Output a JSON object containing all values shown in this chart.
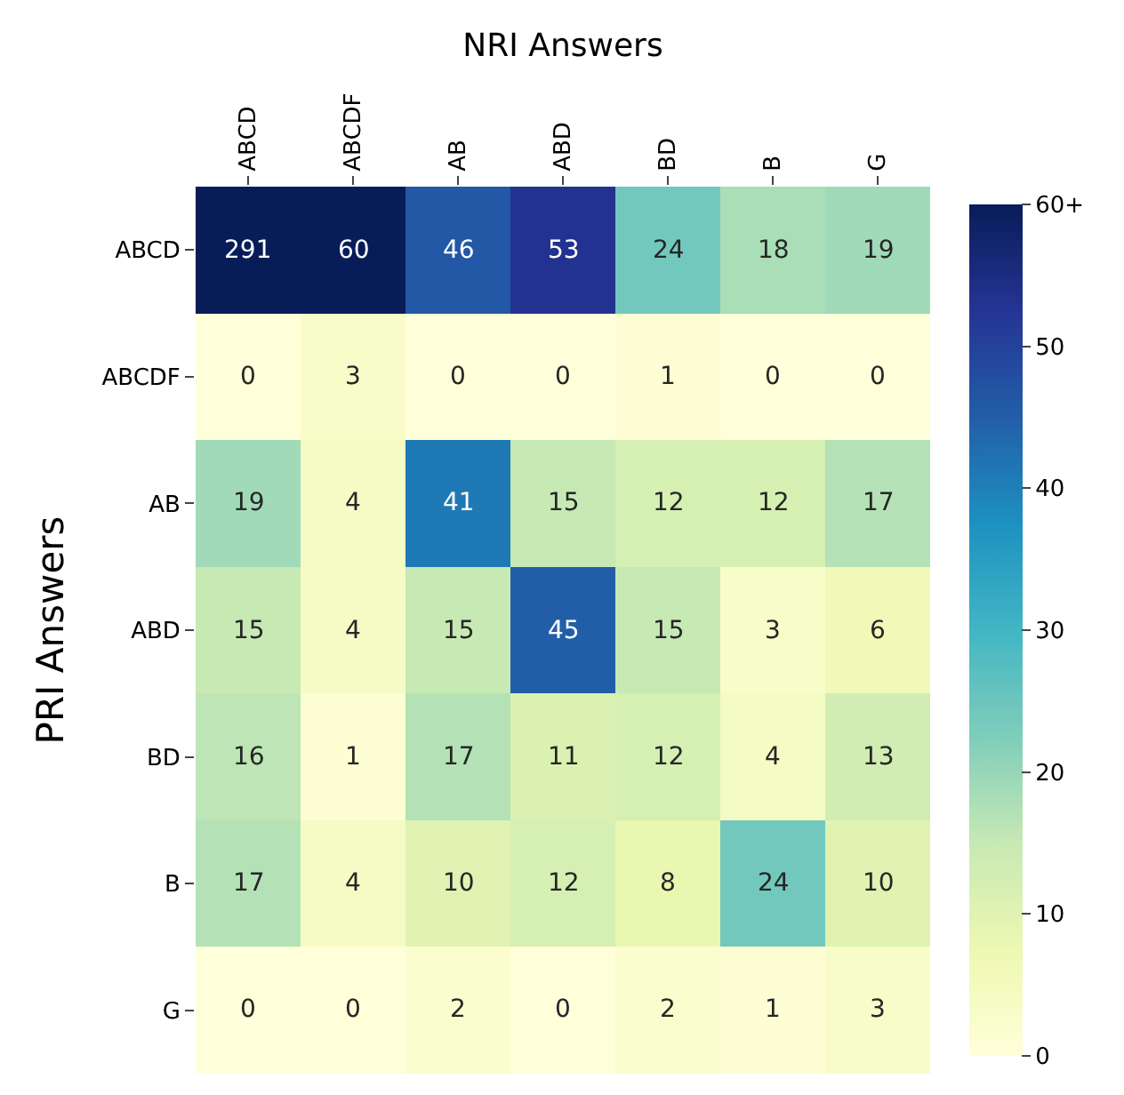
{
  "chart_data": {
    "type": "heatmap",
    "xlabel": "NRI Answers",
    "ylabel": "PRI Answers",
    "categories": [
      "ABCD",
      "ABCDF",
      "AB",
      "ABD",
      "BD",
      "B",
      "G"
    ],
    "y_categories": [
      "ABCD",
      "ABCDF",
      "AB",
      "ABD",
      "BD",
      "B",
      "G"
    ],
    "cells": [
      [
        291,
        60,
        46,
        53,
        24,
        18,
        19
      ],
      [
        0,
        3,
        0,
        0,
        1,
        0,
        0
      ],
      [
        19,
        4,
        41,
        15,
        12,
        12,
        17
      ],
      [
        15,
        4,
        15,
        45,
        15,
        3,
        6
      ],
      [
        16,
        1,
        17,
        11,
        12,
        4,
        13
      ],
      [
        17,
        4,
        10,
        12,
        8,
        24,
        10
      ],
      [
        0,
        0,
        2,
        0,
        2,
        1,
        3
      ]
    ],
    "clim": [
      0,
      60
    ],
    "cticks": [
      0,
      10,
      20,
      30,
      40,
      50,
      {
        "value": 60,
        "label": "60+"
      }
    ],
    "data_labels": true
  }
}
